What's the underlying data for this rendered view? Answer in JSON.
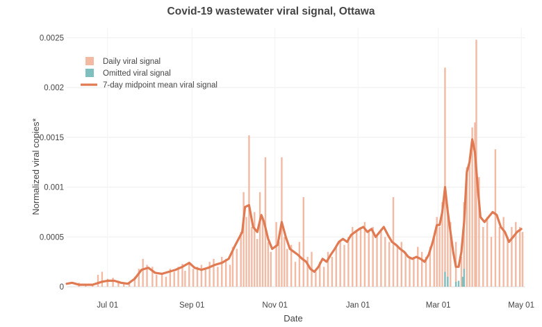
{
  "chart_data": {
    "type": "bar",
    "title": "Covid-19 wastewater viral signal, Ottawa",
    "xlabel": "Date",
    "ylabel": "Normalized viral copies*",
    "x_range": [
      "2020-06-01",
      "2021-05-04"
    ],
    "ylim": [
      0,
      0.0026
    ],
    "grid": true,
    "legend_position": "top-left",
    "x_ticks": [
      {
        "date": "2020-07-01",
        "label": "Jul 01"
      },
      {
        "date": "2020-09-01",
        "label": "Sep 01"
      },
      {
        "date": "2020-11-01",
        "label": "Nov 01"
      },
      {
        "date": "2021-01-01",
        "label": "Jan 01"
      },
      {
        "date": "2021-03-01",
        "label": "Mar 01"
      },
      {
        "date": "2021-05-01",
        "label": "May 01"
      }
    ],
    "y_ticks": [
      {
        "value": 0,
        "label": "0"
      },
      {
        "value": 0.0005,
        "label": "0.0005"
      },
      {
        "value": 0.001,
        "label": "0.001"
      },
      {
        "value": 0.0015,
        "label": "0.0015"
      },
      {
        "value": 0.002,
        "label": "0.002"
      },
      {
        "value": 0.0025,
        "label": "0.0025"
      }
    ],
    "legend": [
      {
        "label": "Daily viral signal",
        "kind": "bar",
        "color": "#f2b9a3"
      },
      {
        "label": "Omitted viral signal",
        "kind": "bar",
        "color": "#7fbfbf"
      },
      {
        "label": "7-day midpoint mean viral signal",
        "kind": "line",
        "color": "#e07a52"
      }
    ],
    "series": [
      {
        "name": "Daily viral signal",
        "color": "#f2b9a3",
        "points": [
          [
            "2020-06-10",
            4e-05
          ],
          [
            "2020-06-15",
            3e-05
          ],
          [
            "2020-06-20",
            3e-05
          ],
          [
            "2020-06-24",
            0.00012
          ],
          [
            "2020-06-27",
            0.00015
          ],
          [
            "2020-07-01",
            8e-05
          ],
          [
            "2020-07-05",
            9e-05
          ],
          [
            "2020-07-09",
            6e-05
          ],
          [
            "2020-07-13",
            4e-05
          ],
          [
            "2020-07-17",
            5e-05
          ],
          [
            "2020-07-21",
            0.0001
          ],
          [
            "2020-07-24",
            0.00018
          ],
          [
            "2020-07-27",
            0.00028
          ],
          [
            "2020-07-30",
            0.00022
          ],
          [
            "2020-08-03",
            0.0002
          ],
          [
            "2020-08-06",
            0.00012
          ],
          [
            "2020-08-10",
            0.00014
          ],
          [
            "2020-08-13",
            0.0001
          ],
          [
            "2020-08-16",
            0.00018
          ],
          [
            "2020-08-19",
            0.00015
          ],
          [
            "2020-08-22",
            0.0002
          ],
          [
            "2020-08-25",
            0.00023
          ],
          [
            "2020-08-27",
            0.00016
          ],
          [
            "2020-08-30",
            0.00025
          ],
          [
            "2020-09-02",
            0.00018
          ],
          [
            "2020-09-05",
            0.0002
          ],
          [
            "2020-09-08",
            0.00022
          ],
          [
            "2020-09-11",
            0.00019
          ],
          [
            "2020-09-14",
            0.00025
          ],
          [
            "2020-09-17",
            0.00028
          ],
          [
            "2020-09-20",
            0.0002
          ],
          [
            "2020-09-23",
            0.0003
          ],
          [
            "2020-09-26",
            0.00028
          ],
          [
            "2020-09-29",
            0.00022
          ],
          [
            "2020-10-01",
            0.0004
          ],
          [
            "2020-10-04",
            0.00038
          ],
          [
            "2020-10-07",
            0.00055
          ],
          [
            "2020-10-09",
            0.00095
          ],
          [
            "2020-10-11",
            0.0007
          ],
          [
            "2020-10-13",
            0.00152
          ],
          [
            "2020-10-15",
            0.0006
          ],
          [
            "2020-10-17",
            0.00075
          ],
          [
            "2020-10-19",
            0.00048
          ],
          [
            "2020-10-21",
            0.00095
          ],
          [
            "2020-10-23",
            0.0007
          ],
          [
            "2020-10-25",
            0.0013
          ],
          [
            "2020-10-27",
            0.00045
          ],
          [
            "2020-10-29",
            0.00035
          ],
          [
            "2020-11-02",
            0.00065
          ],
          [
            "2020-11-04",
            0.00045
          ],
          [
            "2020-11-06",
            0.0013
          ],
          [
            "2020-11-08",
            0.0005
          ],
          [
            "2020-11-10",
            0.00038
          ],
          [
            "2020-11-13",
            0.00042
          ],
          [
            "2020-11-16",
            0.00025
          ],
          [
            "2020-11-19",
            0.00045
          ],
          [
            "2020-11-22",
            0.0009
          ],
          [
            "2020-11-25",
            0.0003
          ],
          [
            "2020-11-28",
            0.00035
          ],
          [
            "2020-12-01",
            0.00015
          ],
          [
            "2020-12-04",
            0.00025
          ],
          [
            "2020-12-07",
            0.0002
          ],
          [
            "2020-12-10",
            0.00035
          ],
          [
            "2020-12-13",
            0.0003
          ],
          [
            "2020-12-16",
            0.0004
          ],
          [
            "2020-12-19",
            0.00045
          ],
          [
            "2020-12-22",
            0.00042
          ],
          [
            "2020-12-25",
            0.0005
          ],
          [
            "2020-12-28",
            0.0006
          ],
          [
            "2020-12-31",
            0.00055
          ],
          [
            "2021-01-03",
            0.0006
          ],
          [
            "2021-01-06",
            0.00065
          ],
          [
            "2021-01-09",
            0.00055
          ],
          [
            "2021-01-12",
            0.0006
          ],
          [
            "2021-01-15",
            0.00052
          ],
          [
            "2021-01-18",
            0.00058
          ],
          [
            "2021-01-21",
            0.0005
          ],
          [
            "2021-01-24",
            0.00045
          ],
          [
            "2021-01-27",
            0.0009
          ],
          [
            "2021-01-30",
            0.00042
          ],
          [
            "2021-02-02",
            0.00045
          ],
          [
            "2021-02-05",
            0.00035
          ],
          [
            "2021-02-08",
            0.0003
          ],
          [
            "2021-02-11",
            0.0003
          ],
          [
            "2021-02-14",
            0.0004
          ],
          [
            "2021-02-17",
            0.00035
          ],
          [
            "2021-02-20",
            0.0003
          ],
          [
            "2021-02-23",
            0.0004
          ],
          [
            "2021-02-26",
            0.0005
          ],
          [
            "2021-02-28",
            0.0007
          ],
          [
            "2021-03-02",
            0.0006
          ],
          [
            "2021-03-04",
            0.00085
          ],
          [
            "2021-03-06",
            0.0022
          ],
          [
            "2021-03-08",
            0.0008
          ],
          [
            "2021-03-10",
            0.00065
          ],
          [
            "2021-03-14",
            0.00045
          ],
          [
            "2021-03-18",
            0.0003
          ],
          [
            "2021-03-20",
            0.00085
          ],
          [
            "2021-03-22",
            0.0012
          ],
          [
            "2021-03-24",
            0.0013
          ],
          [
            "2021-03-26",
            0.0016
          ],
          [
            "2021-03-28",
            0.00165
          ],
          [
            "2021-03-29",
            0.00248
          ],
          [
            "2021-03-31",
            0.0011
          ],
          [
            "2021-04-03",
            0.0006
          ],
          [
            "2021-04-06",
            0.0007
          ],
          [
            "2021-04-09",
            0.0005
          ],
          [
            "2021-04-12",
            0.00138
          ],
          [
            "2021-04-15",
            0.0006
          ],
          [
            "2021-04-18",
            0.0007
          ],
          [
            "2021-04-21",
            0.0005
          ],
          [
            "2021-04-24",
            0.0006
          ],
          [
            "2021-04-27",
            0.00065
          ],
          [
            "2021-04-30",
            0.0006
          ],
          [
            "2021-05-02",
            0.00055
          ]
        ]
      },
      {
        "name": "Omitted viral signal",
        "color": "#7fbfbf",
        "points": [
          [
            "2021-03-06",
            0.00015
          ],
          [
            "2021-03-08",
            0.0001
          ],
          [
            "2021-03-14",
            5e-05
          ],
          [
            "2021-03-16",
            6e-05
          ],
          [
            "2021-03-19",
            0.0001
          ],
          [
            "2021-03-20",
            0.00018
          ]
        ]
      },
      {
        "name": "7-day midpoint mean viral signal",
        "color": "#e07a52",
        "points": [
          [
            "2020-06-01",
            3e-05
          ],
          [
            "2020-06-05",
            4e-05
          ],
          [
            "2020-06-10",
            2e-05
          ],
          [
            "2020-06-20",
            2e-05
          ],
          [
            "2020-06-27",
            5e-05
          ],
          [
            "2020-07-01",
            6e-05
          ],
          [
            "2020-07-06",
            6e-05
          ],
          [
            "2020-07-11",
            4e-05
          ],
          [
            "2020-07-16",
            3e-05
          ],
          [
            "2020-07-21",
            8e-05
          ],
          [
            "2020-07-26",
            0.00017
          ],
          [
            "2020-07-31",
            0.00019
          ],
          [
            "2020-08-05",
            0.00014
          ],
          [
            "2020-08-10",
            0.00013
          ],
          [
            "2020-08-15",
            0.00015
          ],
          [
            "2020-08-20",
            0.00017
          ],
          [
            "2020-08-25",
            0.0002
          ],
          [
            "2020-08-30",
            0.00024
          ],
          [
            "2020-09-03",
            0.00019
          ],
          [
            "2020-09-08",
            0.00017
          ],
          [
            "2020-09-13",
            0.00019
          ],
          [
            "2020-09-18",
            0.00022
          ],
          [
            "2020-09-23",
            0.00024
          ],
          [
            "2020-09-28",
            0.00028
          ],
          [
            "2020-10-03",
            0.00042
          ],
          [
            "2020-10-08",
            0.00055
          ],
          [
            "2020-10-10",
            0.0008
          ],
          [
            "2020-10-13",
            0.00082
          ],
          [
            "2020-10-16",
            0.0006
          ],
          [
            "2020-10-19",
            0.00055
          ],
          [
            "2020-10-22",
            0.00072
          ],
          [
            "2020-10-24",
            0.00065
          ],
          [
            "2020-10-27",
            0.00048
          ],
          [
            "2020-10-30",
            0.00038
          ],
          [
            "2020-11-03",
            0.00042
          ],
          [
            "2020-11-06",
            0.00065
          ],
          [
            "2020-11-09",
            0.0005
          ],
          [
            "2020-11-12",
            0.00038
          ],
          [
            "2020-11-15",
            0.00035
          ],
          [
            "2020-11-18",
            0.00032
          ],
          [
            "2020-11-21",
            0.00028
          ],
          [
            "2020-11-24",
            0.00025
          ],
          [
            "2020-11-27",
            0.00018
          ],
          [
            "2020-11-30",
            0.00015
          ],
          [
            "2020-12-03",
            0.0002
          ],
          [
            "2020-12-06",
            0.00028
          ],
          [
            "2020-12-09",
            0.00025
          ],
          [
            "2020-12-12",
            0.00032
          ],
          [
            "2020-12-15",
            0.00038
          ],
          [
            "2020-12-18",
            0.00045
          ],
          [
            "2020-12-21",
            0.00048
          ],
          [
            "2020-12-24",
            0.00045
          ],
          [
            "2020-12-27",
            0.00052
          ],
          [
            "2020-12-30",
            0.00055
          ],
          [
            "2021-01-02",
            0.00058
          ],
          [
            "2021-01-05",
            0.0006
          ],
          [
            "2021-01-08",
            0.00055
          ],
          [
            "2021-01-11",
            0.00058
          ],
          [
            "2021-01-14",
            0.0005
          ],
          [
            "2021-01-17",
            0.00055
          ],
          [
            "2021-01-20",
            0.0006
          ],
          [
            "2021-01-23",
            0.00052
          ],
          [
            "2021-01-26",
            0.00045
          ],
          [
            "2021-01-29",
            0.00042
          ],
          [
            "2021-02-01",
            0.00038
          ],
          [
            "2021-02-04",
            0.00035
          ],
          [
            "2021-02-07",
            0.0003
          ],
          [
            "2021-02-10",
            0.00028
          ],
          [
            "2021-02-13",
            0.0003
          ],
          [
            "2021-02-16",
            0.00028
          ],
          [
            "2021-02-19",
            0.00025
          ],
          [
            "2021-02-22",
            0.00032
          ],
          [
            "2021-02-25",
            0.00045
          ],
          [
            "2021-02-28",
            0.00062
          ],
          [
            "2021-03-02",
            0.00062
          ],
          [
            "2021-03-04",
            0.00075
          ],
          [
            "2021-03-06",
            0.001
          ],
          [
            "2021-03-08",
            0.00075
          ],
          [
            "2021-03-10",
            0.00055
          ],
          [
            "2021-03-12",
            0.00035
          ],
          [
            "2021-03-14",
            0.0002
          ],
          [
            "2021-03-16",
            0.0002
          ],
          [
            "2021-03-18",
            0.00035
          ],
          [
            "2021-03-20",
            0.00065
          ],
          [
            "2021-03-22",
            0.00115
          ],
          [
            "2021-03-24",
            0.00125
          ],
          [
            "2021-03-26",
            0.00148
          ],
          [
            "2021-03-28",
            0.00135
          ],
          [
            "2021-03-30",
            0.001
          ],
          [
            "2021-04-01",
            0.0007
          ],
          [
            "2021-04-04",
            0.00065
          ],
          [
            "2021-04-07",
            0.0007
          ],
          [
            "2021-04-10",
            0.00075
          ],
          [
            "2021-04-13",
            0.00072
          ],
          [
            "2021-04-16",
            0.0006
          ],
          [
            "2021-04-19",
            0.00055
          ],
          [
            "2021-04-22",
            0.00045
          ],
          [
            "2021-04-25",
            0.0005
          ],
          [
            "2021-04-28",
            0.00055
          ],
          [
            "2021-05-01",
            0.00058
          ]
        ]
      }
    ]
  }
}
